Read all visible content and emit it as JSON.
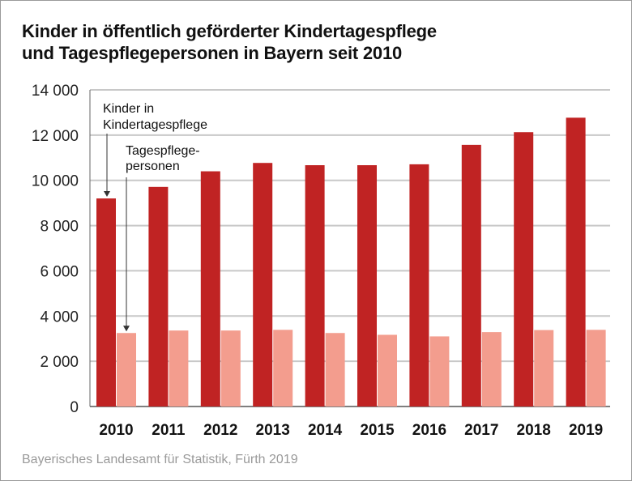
{
  "chart_data": {
    "type": "bar",
    "title": "Kinder in öffentlich geförderter Kindertagespflege und Tagespflegepersonen in Bayern seit 2010",
    "title_lines": [
      "Kinder in öffentlich geförderter Kindertagespflege",
      "und Tagespflegepersonen in Bayern seit 2010"
    ],
    "categories": [
      "2010",
      "2011",
      "2012",
      "2013",
      "2014",
      "2015",
      "2016",
      "2017",
      "2018",
      "2019"
    ],
    "series": [
      {
        "name": "Kinder in Kindertagespflege",
        "name_lines": [
          "Kinder in",
          "Kindertagespflege"
        ],
        "color": "#c02323",
        "values": [
          9200,
          9710,
          10400,
          10770,
          10670,
          10670,
          10710,
          11570,
          12130,
          12770
        ]
      },
      {
        "name": "Tagespflegepersonen",
        "name_lines": [
          "Tagespflege-",
          "personen"
        ],
        "color": "#f39d8e",
        "values": [
          3250,
          3360,
          3360,
          3390,
          3250,
          3170,
          3100,
          3290,
          3380,
          3390
        ]
      }
    ],
    "yticks": [
      0,
      2000,
      4000,
      6000,
      8000,
      10000,
      12000,
      14000
    ],
    "ytick_labels": [
      "0",
      "2 000",
      "4 000",
      "6 000",
      "8 000",
      "10 000",
      "12 000",
      "14 000"
    ],
    "ylim": [
      0,
      14000
    ],
    "grid": true,
    "legend": "annotations with arrows, top-left",
    "xlabel": "",
    "ylabel": ""
  },
  "source": "Bayerisches Landesamt für Statistik, Fürth 2019"
}
